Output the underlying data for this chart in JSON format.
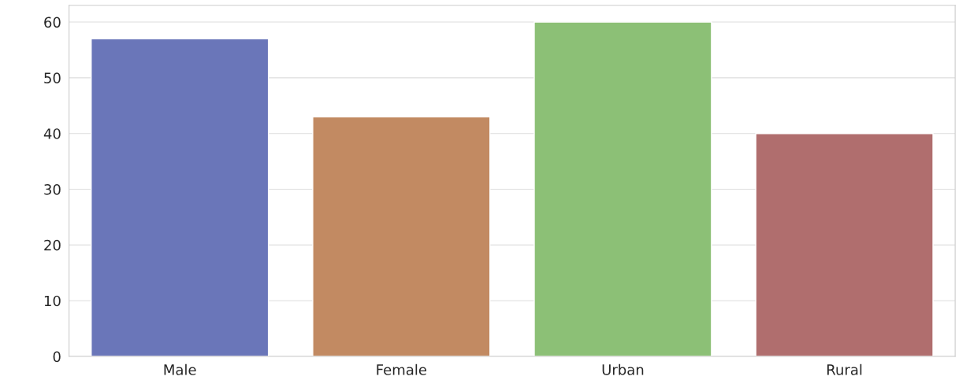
{
  "chart_data": {
    "type": "bar",
    "categories": [
      "Male",
      "Female",
      "Urban",
      "Rural"
    ],
    "values": [
      57,
      43,
      60,
      40
    ],
    "colors": [
      "#6a76b9",
      "#c28a62",
      "#8cc076",
      "#b06e6e"
    ],
    "ylim": [
      0,
      63
    ],
    "yticks": [
      0,
      10,
      20,
      30,
      40,
      50,
      60
    ],
    "grid": "y"
  }
}
